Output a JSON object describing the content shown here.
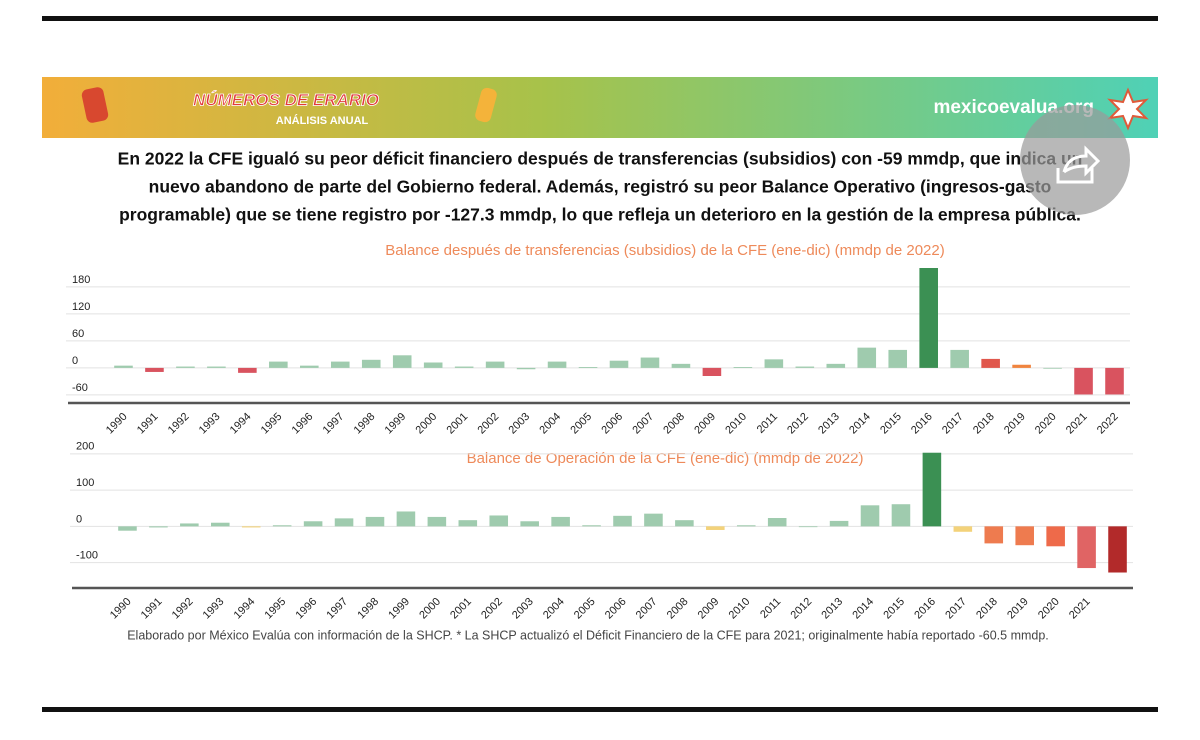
{
  "banner": {
    "brand": "NÚMEROS DE ERARIO",
    "subbrand": "ANÁLISIS ANUAL",
    "site": "mexicoevalua.org"
  },
  "headline": [
    "En 2022 la CFE igualó su peor déficit financiero después de transferencias (subsidios) con -59 mmdp, que indica un",
    "nuevo abandono de parte del Gobierno federal. Además, registró su peor Balance Operativo (ingresos-gasto",
    "programable) que se tiene registro por -127.3 mmdp, lo que refleja un deterioro en la gestión de la empresa pública."
  ],
  "footnote": "Elaborado por México Evalúa con información de la SHCP. * La SHCP actualizó el Déficit Financiero de la CFE para 2021; originalmente había reportado  -60.5 mmdp.",
  "chart_data": [
    {
      "type": "bar",
      "title": "Balance después de transferencias (subsidios) de la CFE (ene-dic) (mmdp de 2022)",
      "categories": [
        "1990",
        "1991",
        "1992",
        "1993",
        "1994",
        "1995",
        "1996",
        "1997",
        "1998",
        "1999",
        "2000",
        "2001",
        "2002",
        "2003",
        "2004",
        "2005",
        "2006",
        "2007",
        "2008",
        "2009",
        "2010",
        "2011",
        "2012",
        "2013",
        "2014",
        "2015",
        "2016",
        "2017",
        "2018",
        "2019",
        "2020",
        "2021",
        "2022"
      ],
      "values": [
        5,
        -9,
        3,
        3,
        -11,
        14,
        5,
        14,
        18,
        28,
        12,
        3,
        14,
        -3,
        14,
        2,
        16,
        23,
        9,
        -18,
        2,
        19,
        3,
        9,
        45,
        40,
        222,
        40,
        20,
        7,
        0,
        -59,
        -59
      ],
      "colors": [
        "#9fcbae",
        "#d9535f",
        "#9fcbae",
        "#9fcbae",
        "#d9535f",
        "#9fcbae",
        "#9fcbae",
        "#9fcbae",
        "#9fcbae",
        "#9fcbae",
        "#9fcbae",
        "#9fcbae",
        "#9fcbae",
        "#9fcbae",
        "#9fcbae",
        "#9fcbae",
        "#9fcbae",
        "#9fcbae",
        "#9fcbae",
        "#d9535f",
        "#9fcbae",
        "#9fcbae",
        "#9fcbae",
        "#9fcbae",
        "#9fcbae",
        "#9fcbae",
        "#3b9053",
        "#9fcbae",
        "#e0574c",
        "#f0843f",
        "#9fcbae",
        "#d9535f",
        "#d9535f"
      ],
      "ylim": [
        -78,
        222
      ],
      "yticks": [
        -60,
        0,
        60,
        120,
        180
      ],
      "grid": true
    },
    {
      "type": "bar",
      "title": "Balance de Operación de la CFE (ene-dic) (mmdp de 2022)",
      "categories": [
        "1990",
        "1991",
        "1992",
        "1993",
        "1994",
        "1995",
        "1996",
        "1997",
        "1998",
        "1999",
        "2000",
        "2001",
        "2002",
        "2003",
        "2004",
        "2005",
        "2006",
        "2007",
        "2008",
        "2009",
        "2010",
        "2011",
        "2012",
        "2013",
        "2014",
        "2015",
        "2016",
        "2017",
        "2018",
        "2019",
        "2020",
        "2021",
        null
      ],
      "values": [
        -12,
        -3,
        8,
        10,
        -3,
        3,
        14,
        22,
        26,
        41,
        26,
        17,
        30,
        14,
        26,
        3,
        29,
        35,
        17,
        -10,
        3,
        23,
        0,
        15,
        58,
        61,
        203,
        -15,
        -47,
        -52,
        -55,
        -115,
        -127.3
      ],
      "colors": [
        "#9fcbae",
        "#9fcbae",
        "#9fcbae",
        "#9fcbae",
        "#f3d27a",
        "#9fcbae",
        "#9fcbae",
        "#9fcbae",
        "#9fcbae",
        "#9fcbae",
        "#9fcbae",
        "#9fcbae",
        "#9fcbae",
        "#9fcbae",
        "#9fcbae",
        "#9fcbae",
        "#9fcbae",
        "#9fcbae",
        "#9fcbae",
        "#f3d27a",
        "#9fcbae",
        "#9fcbae",
        "#9fcbae",
        "#9fcbae",
        "#9fcbae",
        "#9fcbae",
        "#3b9053",
        "#f3d27a",
        "#ee7b4f",
        "#ee7b4f",
        "#ee6a4a",
        "#e06464",
        "#b22a2a"
      ],
      "ylim": [
        -170,
        205
      ],
      "yticks": [
        -100,
        0,
        100,
        200
      ],
      "grid": true
    }
  ]
}
